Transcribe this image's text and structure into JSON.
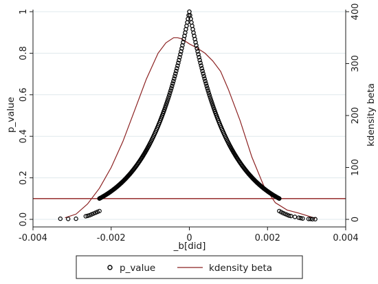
{
  "chart_data": {
    "type": "scatter",
    "title": "",
    "xlabel": "_b[did]",
    "ylabel_left": "p_value",
    "ylabel_right": "kdensity beta",
    "xlim": [
      -0.004,
      0.004
    ],
    "ylim_left": [
      0,
      1
    ],
    "ylim_right": [
      0,
      400
    ],
    "x_ticks": [
      -0.004,
      -0.002,
      0,
      0.002,
      0.004
    ],
    "x_tick_labels": [
      "-0.004",
      "-0.002",
      "0",
      "0.002",
      "0.004"
    ],
    "y_left_ticks": [
      0,
      0.2,
      0.4,
      0.6,
      0.8,
      1
    ],
    "y_left_tick_labels": [
      "0.0",
      "0.2",
      "0.4",
      "0.6",
      "0.8",
      "1"
    ],
    "y_right_ticks": [
      0,
      100,
      200,
      300,
      400
    ],
    "y_right_tick_labels": [
      "0",
      "100",
      "200",
      "300",
      "400"
    ],
    "grid": "horizontal",
    "legend_position": "bottom",
    "reference_line": {
      "axis": "y_left",
      "value": 0.1,
      "color": "#8b1a1a"
    },
    "series": [
      {
        "name": "p_value",
        "kind": "scatter",
        "axis": "left",
        "marker": "hollow-circle",
        "color": "#000000",
        "points": [
          [
            -0.0033,
            0.003
          ],
          [
            -0.0031,
            0.002
          ],
          [
            -0.0029,
            0.003
          ],
          [
            -0.00265,
            0.015
          ],
          [
            -0.0026,
            0.017
          ],
          [
            -0.00255,
            0.02
          ],
          [
            -0.0025,
            0.024
          ],
          [
            -0.00245,
            0.028
          ],
          [
            -0.0024,
            0.032
          ],
          [
            -0.00235,
            0.036
          ],
          [
            -0.0023,
            0.04
          ],
          [
            0.0023,
            0.04
          ],
          [
            0.00235,
            0.035
          ],
          [
            0.0024,
            0.03
          ],
          [
            0.00245,
            0.026
          ],
          [
            0.0025,
            0.022
          ],
          [
            0.00255,
            0.018
          ],
          [
            0.0026,
            0.016
          ],
          [
            0.0027,
            0.012
          ],
          [
            0.0028,
            0.008
          ],
          [
            0.00285,
            0.006
          ],
          [
            0.0029,
            0.004
          ],
          [
            0.00305,
            0.002
          ],
          [
            0.0031,
            0.002
          ],
          [
            0.00315,
            0.001
          ],
          [
            0.00322,
            0.001
          ]
        ],
        "dense_curve": {
          "x_range": [
            -0.0023,
            0.0023
          ],
          "shape": "exponential",
          "peak": 1,
          "scale": 0.001
        }
      },
      {
        "name": "kdensity beta",
        "kind": "line",
        "axis": "right",
        "color": "#8b2020",
        "x": [
          -0.00318,
          -0.0029,
          -0.0026,
          -0.0023,
          -0.002,
          -0.0017,
          -0.0014,
          -0.0011,
          -0.0008,
          -0.0006,
          -0.0004,
          -0.0003,
          -0.0002,
          0.0,
          0.0002,
          0.0004,
          0.0006,
          0.0008,
          0.001,
          0.0013,
          0.0016,
          0.0019,
          0.0022,
          0.0025,
          0.0028,
          0.0031,
          0.00322
        ],
        "values": [
          3,
          10,
          30,
          60,
          100,
          150,
          210,
          270,
          320,
          340,
          350,
          350,
          348,
          338,
          330,
          320,
          305,
          285,
          250,
          190,
          120,
          65,
          32,
          18,
          12,
          5,
          2
        ]
      }
    ]
  },
  "legend": {
    "items": [
      {
        "label": "p_value",
        "symbol": "hollow-circle"
      },
      {
        "label": "kdensity beta",
        "symbol": "line"
      }
    ]
  }
}
